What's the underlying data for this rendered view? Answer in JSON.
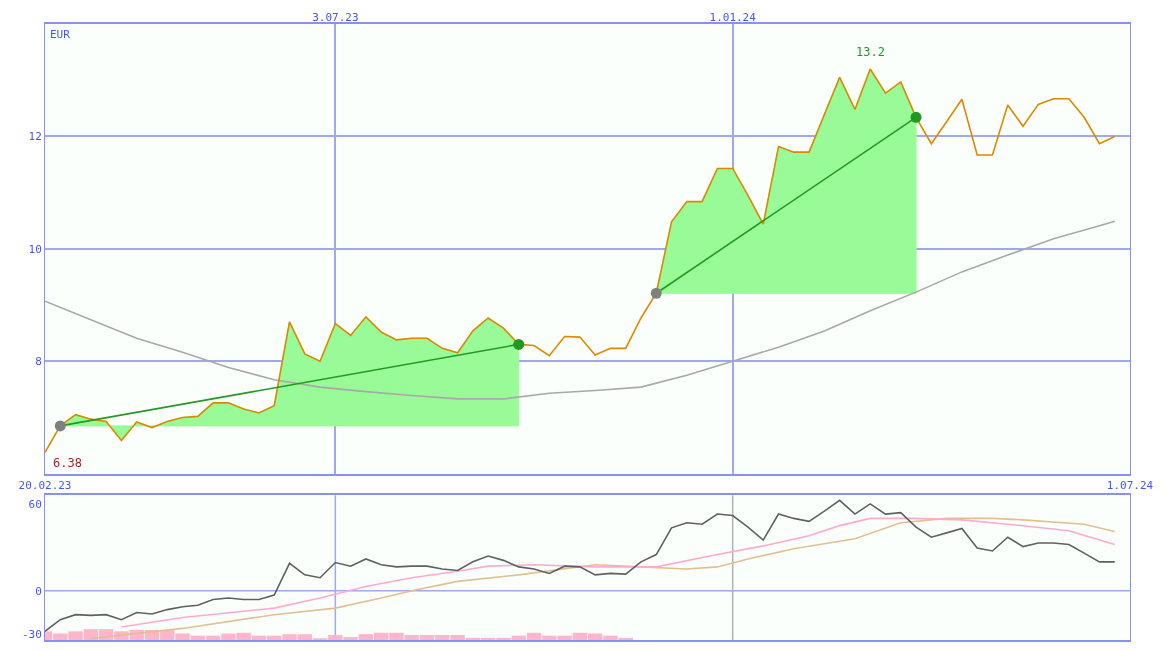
{
  "chart_data": [
    {
      "type": "line",
      "ylabel": "EUR",
      "grid": true,
      "x": [
        "2023-02-20",
        "2023-02-27",
        "2023-03-06",
        "2023-03-13",
        "2023-03-20",
        "2023-03-27",
        "2023-04-03",
        "2023-04-10",
        "2023-04-17",
        "2023-04-24",
        "2023-05-01",
        "2023-05-08",
        "2023-05-15",
        "2023-05-22",
        "2023-05-29",
        "2023-06-05",
        "2023-06-12",
        "2023-06-19",
        "2023-06-26",
        "2023-07-03",
        "2023-07-10",
        "2023-07-17",
        "2023-07-24",
        "2023-07-31",
        "2023-08-07",
        "2023-08-14",
        "2023-08-21",
        "2023-08-28",
        "2023-09-04",
        "2023-09-11",
        "2023-09-18",
        "2023-09-25",
        "2023-10-02",
        "2023-10-09",
        "2023-10-16",
        "2023-10-23",
        "2023-10-30",
        "2023-11-06",
        "2023-11-13",
        "2023-11-20",
        "2023-11-27",
        "2023-12-04",
        "2023-12-11",
        "2023-12-18",
        "2023-12-25",
        "2024-01-01",
        "2024-01-08",
        "2024-01-15",
        "2024-01-22",
        "2024-01-29",
        "2024-02-05",
        "2024-02-12",
        "2024-02-19",
        "2024-02-26",
        "2024-03-04",
        "2024-03-11",
        "2024-03-18",
        "2024-03-25",
        "2024-04-01",
        "2024-04-08",
        "2024-04-15",
        "2024-04-22",
        "2024-04-29",
        "2024-05-06",
        "2024-05-13",
        "2024-05-20",
        "2024-05-27",
        "2024-06-03",
        "2024-06-10",
        "2024-06-17",
        "2024-06-24"
      ],
      "xlim": [
        "2023-02-20",
        "2024-07-01"
      ],
      "xticks": [
        {
          "value": "2023-02-20",
          "label": "20.02.23"
        },
        {
          "value": "2024-07-01",
          "label": "1.07.24"
        }
      ],
      "x2lim": [
        "2023-02-20",
        "2024-07-01"
      ],
      "x2ticks": [
        {
          "value": "2023-07-03",
          "label": "3.07.23"
        },
        {
          "value": "2024-01-01",
          "label": "1.01.24"
        }
      ],
      "ylim": [
        6,
        14
      ],
      "yticks": [
        8,
        10,
        12
      ],
      "annotations": [
        {
          "text": "6.38",
          "x": "2023-02-20",
          "y": 6.38
        },
        {
          "text": "13.2",
          "x": "2024-03-04",
          "y": 13.2
        }
      ],
      "series": [
        {
          "color": "#a8a8a8",
          "x": [
            "2023-02-20",
            "2023-03-13",
            "2023-04-03",
            "2023-04-24",
            "2023-05-15",
            "2023-06-05",
            "2023-06-26",
            "2023-07-17",
            "2023-08-07",
            "2023-08-28",
            "2023-09-18",
            "2023-10-09",
            "2023-10-30",
            "2023-11-20",
            "2023-12-11",
            "2024-01-01",
            "2024-01-22",
            "2024-02-12",
            "2024-03-04",
            "2024-03-25",
            "2024-04-15",
            "2024-05-06",
            "2024-05-27",
            "2024-06-17",
            "2024-06-24"
          ],
          "values": [
            9.07,
            8.74,
            8.41,
            8.16,
            7.89,
            7.67,
            7.54,
            7.46,
            7.39,
            7.33,
            7.33,
            7.43,
            7.48,
            7.54,
            7.75,
            8.0,
            8.25,
            8.54,
            8.9,
            9.23,
            9.59,
            9.89,
            10.18,
            10.41,
            10.49
          ]
        },
        {
          "color": "#dd8800",
          "values": [
            6.38,
            6.85,
            7.05,
            6.97,
            6.93,
            6.59,
            6.92,
            6.82,
            6.93,
            7.0,
            7.02,
            7.26,
            7.26,
            7.15,
            7.08,
            7.21,
            8.7,
            8.13,
            8.0,
            8.67,
            8.46,
            8.79,
            8.52,
            8.38,
            8.41,
            8.41,
            8.23,
            8.15,
            8.54,
            8.77,
            8.59,
            8.3,
            8.28,
            8.1,
            8.44,
            8.43,
            8.11,
            8.23,
            8.23,
            8.77,
            9.21,
            10.48,
            10.84,
            10.84,
            11.43,
            11.43,
            10.95,
            10.44,
            11.82,
            11.72,
            11.72,
            12.39,
            13.05,
            12.48,
            13.2,
            12.77,
            12.97,
            12.34,
            11.87,
            12.26,
            12.66,
            11.67,
            11.67,
            12.56,
            12.18,
            12.57,
            12.67,
            12.67,
            12.34,
            11.87,
            12.0
          ],
          "upper": [
            null,
            6.85,
            7.05,
            6.97,
            6.93,
            6.59,
            6.92,
            6.82,
            6.93,
            7.0,
            7.02,
            7.26,
            7.26,
            7.15,
            7.08,
            7.21,
            8.7,
            8.13,
            8.0,
            8.67,
            8.46,
            8.79,
            8.52,
            8.38,
            8.41,
            8.41,
            8.23,
            8.15,
            8.54,
            8.77,
            8.59,
            8.3,
            null,
            null,
            null,
            null,
            null,
            null,
            null,
            null,
            9.21,
            10.48,
            10.84,
            10.84,
            11.43,
            11.43,
            10.95,
            10.44,
            11.82,
            11.72,
            11.72,
            12.39,
            13.05,
            12.48,
            13.2,
            12.77,
            12.97,
            12.34,
            null,
            null,
            null,
            null,
            null,
            null,
            null,
            null,
            null,
            null,
            null,
            null,
            null
          ],
          "lower": [
            null,
            6.85,
            6.85,
            6.85,
            6.85,
            6.85,
            6.85,
            6.85,
            6.85,
            6.85,
            6.85,
            6.85,
            6.85,
            6.85,
            6.85,
            6.85,
            6.85,
            6.85,
            6.85,
            6.85,
            6.85,
            6.85,
            6.85,
            6.85,
            6.85,
            6.85,
            6.85,
            6.85,
            6.85,
            6.85,
            6.85,
            6.85,
            null,
            null,
            null,
            null,
            null,
            null,
            null,
            null,
            9.21,
            9.21,
            9.21,
            9.21,
            9.21,
            9.21,
            9.21,
            9.21,
            9.21,
            9.21,
            9.21,
            9.21,
            9.21,
            9.21,
            9.21,
            9.21,
            9.21,
            9.21,
            null,
            null,
            null,
            null,
            null,
            null,
            null,
            null,
            null,
            null,
            null,
            null,
            null
          ]
        },
        {
          "type": "line",
          "color": "#229922",
          "x": [
            "2023-02-27",
            "2023-09-25",
            "2023-10-23",
            "2023-11-27",
            "2024-03-25"
          ],
          "values": [
            6.85,
            8.3,
            null,
            9.21,
            12.34
          ]
        },
        {
          "type": "scatter",
          "marker": "circle",
          "colors": [
            "#808080",
            "#229922",
            "#808080",
            "#229922"
          ],
          "x": [
            "2023-02-27",
            "2023-09-25",
            "2023-11-27",
            "2024-03-25"
          ],
          "values": [
            6.85,
            8.3,
            9.21,
            12.34
          ]
        }
      ]
    },
    {
      "type": "line",
      "tick_labels": "y",
      "x": [
        "2023-02-20",
        "2023-02-27",
        "2023-03-06",
        "2023-03-13",
        "2023-03-20",
        "2023-03-27",
        "2023-04-03",
        "2023-04-10",
        "2023-04-17",
        "2023-04-24",
        "2023-05-01",
        "2023-05-08",
        "2023-05-15",
        "2023-05-22",
        "2023-05-29",
        "2023-06-05",
        "2023-06-12",
        "2023-06-19",
        "2023-06-26",
        "2023-07-03",
        "2023-07-10",
        "2023-07-17",
        "2023-07-24",
        "2023-07-31",
        "2023-08-07",
        "2023-08-14",
        "2023-08-21",
        "2023-08-28",
        "2023-09-04",
        "2023-09-11",
        "2023-09-18",
        "2023-09-25",
        "2023-10-02",
        "2023-10-09",
        "2023-10-16",
        "2023-10-23",
        "2023-10-30",
        "2023-11-06",
        "2023-11-13",
        "2023-11-20",
        "2023-11-27",
        "2023-12-04",
        "2023-12-11",
        "2023-12-18",
        "2023-12-25",
        "2024-01-01",
        "2024-01-08",
        "2024-01-15",
        "2024-01-22",
        "2024-01-29",
        "2024-02-05",
        "2024-02-12",
        "2024-02-19",
        "2024-02-26",
        "2024-03-04",
        "2024-03-11",
        "2024-03-18",
        "2024-03-25",
        "2024-04-01",
        "2024-04-08",
        "2024-04-15",
        "2024-04-22",
        "2024-04-29",
        "2024-05-06",
        "2024-05-13",
        "2024-05-20",
        "2024-05-27",
        "2024-06-03",
        "2024-06-10",
        "2024-06-17",
        "2024-06-24"
      ],
      "xlim": [
        "2023-02-20",
        "2024-07-01"
      ],
      "ylim": [
        -34,
        66
      ],
      "yticks": [
        60,
        0,
        -30
      ],
      "ref_lines": [
        {
          "axis": "y",
          "value": 0,
          "color": "#a0a8f0"
        },
        {
          "axis": "x",
          "value": "2023-07-03",
          "color": "#a0a8f0"
        },
        {
          "axis": "x",
          "value": "2024-01-01",
          "color": "#b0b0b0"
        }
      ],
      "series": [
        {
          "type": "bar",
          "color": "#ffb6c8",
          "x": [
            "2023-02-20",
            "2023-02-27",
            "2023-03-06",
            "2023-03-13",
            "2023-03-20",
            "2023-03-27",
            "2023-04-03",
            "2023-04-10",
            "2023-04-17",
            "2023-04-24",
            "2023-05-01",
            "2023-05-08",
            "2023-05-15",
            "2023-05-22",
            "2023-05-29",
            "2023-06-05",
            "2023-06-12",
            "2023-06-19",
            "2023-06-26",
            "2023-07-03",
            "2023-07-10",
            "2023-07-17",
            "2023-07-24",
            "2023-07-31",
            "2023-08-07",
            "2023-08-14",
            "2023-08-21",
            "2023-08-28",
            "2023-09-04",
            "2023-09-11",
            "2023-09-18",
            "2023-09-25",
            "2023-10-02",
            "2023-10-09",
            "2023-10-16",
            "2023-10-23",
            "2023-10-30",
            "2023-11-06",
            "2023-11-13"
          ],
          "values": [
            6,
            4.5,
            6,
            7.5,
            7.5,
            6,
            7,
            7,
            7,
            4.5,
            3,
            3,
            4.5,
            5,
            3,
            3,
            4,
            4,
            1,
            3.5,
            2,
            4,
            5,
            5,
            3.5,
            3.5,
            3.5,
            3.5,
            1.5,
            1.5,
            1.5,
            3,
            5,
            3,
            3,
            5,
            4.5,
            3,
            1.5
          ],
          "base": [
            -34,
            -34,
            -34,
            -34,
            -34,
            -34,
            -34,
            -34,
            -34,
            -34,
            -34,
            -34,
            -34,
            -34,
            -34,
            -34,
            -34,
            -34,
            -34,
            -34,
            -34,
            -34,
            -34,
            -34,
            -34,
            -34,
            -34,
            -34,
            -34,
            -34,
            -34,
            -34,
            -34,
            -34,
            -34,
            -34,
            -34,
            -34,
            -34
          ]
        },
        {
          "color": "#e0c090",
          "x": [
            "2023-03-13",
            "2023-04-24",
            "2023-06-05",
            "2023-07-03",
            "2023-07-24",
            "2023-08-07",
            "2023-08-28",
            "2023-09-25",
            "2023-10-30",
            "2023-11-20",
            "2023-12-11",
            "2023-12-25",
            "2024-01-08",
            "2024-01-29",
            "2024-02-26",
            "2024-03-18",
            "2024-04-08",
            "2024-04-29",
            "2024-05-13",
            "2024-06-10",
            "2024-06-24"
          ],
          "values": [
            -33,
            -26,
            -16.5,
            -12,
            -5,
            0,
            6.5,
            11,
            18,
            16.5,
            15,
            16.5,
            22,
            29,
            36,
            47,
            50,
            50,
            49,
            46,
            41
          ]
        },
        {
          "color": "#ffaacc",
          "x": [
            "2023-03-27",
            "2023-04-24",
            "2023-06-05",
            "2023-06-26",
            "2023-07-17",
            "2023-08-07",
            "2023-08-28",
            "2023-09-11",
            "2023-10-02",
            "2023-10-30",
            "2023-11-27",
            "2023-12-25",
            "2024-01-15",
            "2024-02-05",
            "2024-02-19",
            "2024-03-04",
            "2024-03-25",
            "2024-04-15",
            "2024-05-06",
            "2024-06-03",
            "2024-06-24"
          ],
          "values": [
            -25,
            -18.5,
            -12,
            -5,
            3,
            9,
            13.5,
            17,
            18,
            16.5,
            16.5,
            25,
            31,
            38,
            45,
            50,
            50,
            49,
            46,
            41.5,
            32
          ]
        },
        {
          "color": "#606060",
          "values": [
            -28,
            -20,
            -16.5,
            -17,
            -16.5,
            -20,
            -15,
            -16,
            -13,
            -11,
            -10,
            -6,
            -5,
            -6,
            -6,
            -3,
            19,
            11,
            9,
            19.5,
            17,
            22,
            18,
            16.5,
            17,
            17,
            15,
            14,
            20,
            24,
            21,
            16.5,
            15,
            12,
            17,
            16.5,
            11,
            12,
            11.5,
            20,
            25,
            43.5,
            47,
            46,
            53,
            52,
            44,
            35,
            53,
            50,
            48,
            55,
            62.5,
            53,
            60,
            53,
            54,
            44,
            37,
            40,
            43,
            29.5,
            27.5,
            37,
            30.5,
            33,
            33,
            32,
            26,
            20,
            20
          ]
        }
      ]
    }
  ]
}
